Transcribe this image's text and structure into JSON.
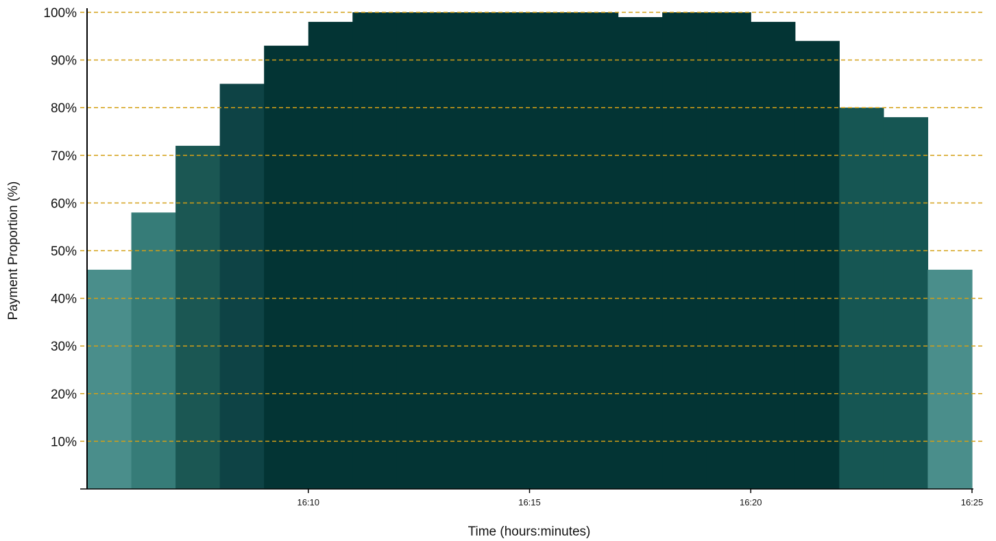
{
  "chart_data": {
    "type": "bar",
    "title": "",
    "xlabel": "Time (hours:minutes)",
    "ylabel": "Payment Proportion (%)",
    "x_tick_labels": [
      "16:10",
      "16:15",
      "16:20",
      "16:25"
    ],
    "x_tick_positions_minutes": [
      10,
      15,
      20,
      25
    ],
    "x_range_minutes": [
      5,
      25
    ],
    "y_tick_labels": [
      "10%",
      "20%",
      "30%",
      "40%",
      "50%",
      "60%",
      "70%",
      "80%",
      "90%",
      "100%"
    ],
    "y_tick_values": [
      10,
      20,
      30,
      40,
      50,
      60,
      70,
      80,
      90,
      100
    ],
    "ylim": [
      0,
      100
    ],
    "grid": "horizontal dashed",
    "bin_start_minutes": [
      5,
      6,
      7,
      8,
      9,
      10,
      11,
      12,
      13,
      14,
      15,
      16,
      17,
      18,
      19,
      20,
      21,
      22,
      23,
      24
    ],
    "values": [
      46,
      58,
      72,
      85,
      93,
      98,
      100,
      100,
      100,
      100,
      100,
      100,
      99,
      100,
      100,
      98,
      94,
      80,
      78,
      46
    ],
    "colors": [
      "#4a8e8b",
      "#367c78",
      "#1b5753",
      "#0e4345",
      "#033434",
      "#033434",
      "#033434",
      "#033434",
      "#033434",
      "#033434",
      "#033434",
      "#033434",
      "#033434",
      "#033434",
      "#033434",
      "#033434",
      "#033434",
      "#165653",
      "#165653",
      "#4a8e8b"
    ],
    "grid_color": "#d4a017",
    "axis_color": "#000000"
  }
}
